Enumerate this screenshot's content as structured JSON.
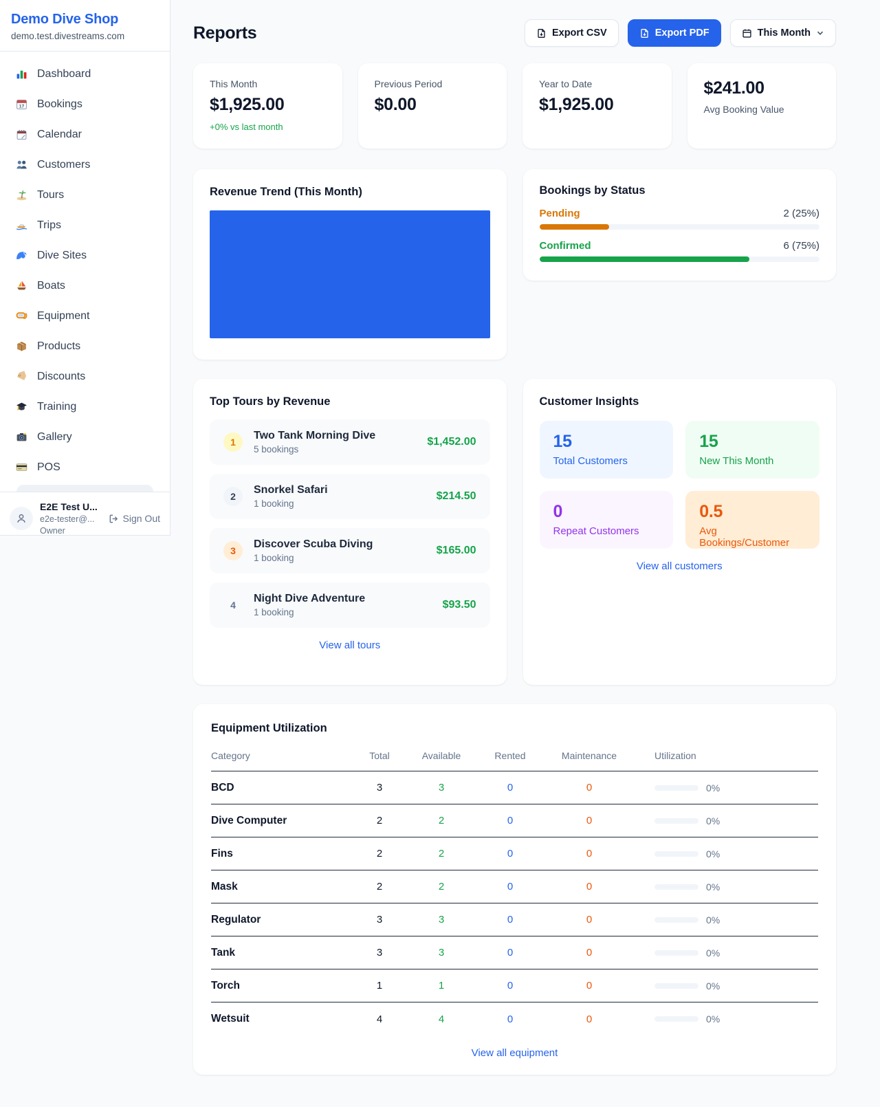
{
  "colors": {
    "accent_blue": "#2563eb",
    "green": "#16a34a",
    "amber": "#d97706",
    "orange_red": "#ea580c",
    "purple": "#9333ea",
    "page_bg": "#f8fafc"
  },
  "sidebar": {
    "brand": {
      "name": "Demo Dive Shop",
      "domain": "demo.test.divestreams.com"
    },
    "items": [
      {
        "label": "Dashboard",
        "icon": "bar-chart-icon"
      },
      {
        "label": "Bookings",
        "icon": "calendar-date-icon"
      },
      {
        "label": "Calendar",
        "icon": "spiral-calendar-icon"
      },
      {
        "label": "Customers",
        "icon": "people-icon"
      },
      {
        "label": "Tours",
        "icon": "island-icon"
      },
      {
        "label": "Trips",
        "icon": "speedboat-icon"
      },
      {
        "label": "Dive Sites",
        "icon": "wave-icon"
      },
      {
        "label": "Boats",
        "icon": "sailboat-icon"
      },
      {
        "label": "Equipment",
        "icon": "dive-mask-icon"
      },
      {
        "label": "Products",
        "icon": "package-icon"
      },
      {
        "label": "Discounts",
        "icon": "tag-icon"
      },
      {
        "label": "Training",
        "icon": "graduation-cap-icon"
      },
      {
        "label": "Gallery",
        "icon": "camera-icon"
      },
      {
        "label": "POS",
        "icon": "credit-card-icon"
      }
    ],
    "user": {
      "name": "E2E Test U...",
      "email": "e2e-tester@...",
      "role": "Owner",
      "sign_out": "Sign Out"
    }
  },
  "header": {
    "title": "Reports",
    "export_csv": "Export CSV",
    "export_pdf": "Export PDF",
    "period": "This Month"
  },
  "stats": [
    {
      "label": "This Month",
      "value": "$1,925.00",
      "delta": "+0% vs last month"
    },
    {
      "label": "Previous Period",
      "value": "$0.00"
    },
    {
      "label": "Year to Date",
      "value": "$1,925.00"
    },
    {
      "label": "Avg Booking Value",
      "value": "$241.00"
    }
  ],
  "revenue_trend": {
    "title": "Revenue Trend (This Month)"
  },
  "bookings_by_status": {
    "title": "Bookings by Status",
    "rows": [
      {
        "label": "Pending",
        "count": "2 (25%)",
        "pct": 25
      },
      {
        "label": "Confirmed",
        "count": "6 (75%)",
        "pct": 75
      }
    ]
  },
  "top_tours": {
    "title": "Top Tours by Revenue",
    "rows": [
      {
        "rank": "1",
        "name": "Two Tank Morning Dive",
        "bookings": "5 bookings",
        "revenue": "$1,452.00"
      },
      {
        "rank": "2",
        "name": "Snorkel Safari",
        "bookings": "1 booking",
        "revenue": "$214.50"
      },
      {
        "rank": "3",
        "name": "Discover Scuba Diving",
        "bookings": "1 booking",
        "revenue": "$165.00"
      },
      {
        "rank": "4",
        "name": "Night Dive Adventure",
        "bookings": "1 booking",
        "revenue": "$93.50"
      }
    ],
    "view_all": "View all tours"
  },
  "customer_insights": {
    "title": "Customer Insights",
    "tiles": [
      {
        "value": "15",
        "label": "Total Customers"
      },
      {
        "value": "15",
        "label": "New This Month"
      },
      {
        "value": "0",
        "label": "Repeat Customers"
      },
      {
        "value": "0.5",
        "label": "Avg Bookings/Customer"
      }
    ],
    "view_all": "View all customers"
  },
  "equipment": {
    "title": "Equipment Utilization",
    "columns": [
      "Category",
      "Total",
      "Available",
      "Rented",
      "Maintenance",
      "Utilization"
    ],
    "rows": [
      {
        "category": "BCD",
        "total": "3",
        "available": "3",
        "rented": "0",
        "maintenance": "0",
        "utilization": "0%",
        "pct": 0
      },
      {
        "category": "Dive Computer",
        "total": "2",
        "available": "2",
        "rented": "0",
        "maintenance": "0",
        "utilization": "0%",
        "pct": 0
      },
      {
        "category": "Fins",
        "total": "2",
        "available": "2",
        "rented": "0",
        "maintenance": "0",
        "utilization": "0%",
        "pct": 0
      },
      {
        "category": "Mask",
        "total": "2",
        "available": "2",
        "rented": "0",
        "maintenance": "0",
        "utilization": "0%",
        "pct": 0
      },
      {
        "category": "Regulator",
        "total": "3",
        "available": "3",
        "rented": "0",
        "maintenance": "0",
        "utilization": "0%",
        "pct": 0
      },
      {
        "category": "Tank",
        "total": "3",
        "available": "3",
        "rented": "0",
        "maintenance": "0",
        "utilization": "0%",
        "pct": 0
      },
      {
        "category": "Torch",
        "total": "1",
        "available": "1",
        "rented": "0",
        "maintenance": "0",
        "utilization": "0%",
        "pct": 0
      },
      {
        "category": "Wetsuit",
        "total": "4",
        "available": "4",
        "rented": "0",
        "maintenance": "0",
        "utilization": "0%",
        "pct": 0
      }
    ],
    "view_all": "View all equipment"
  }
}
